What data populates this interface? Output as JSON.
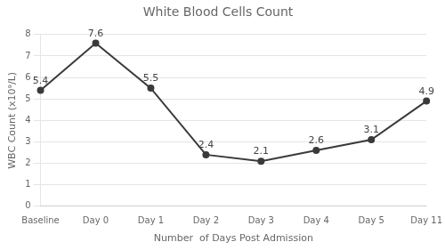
{
  "chart_data": {
    "type": "line",
    "title": "White Blood Cells Count",
    "xlabel": "Number  of Days Post Admission",
    "ylabel": "WBC Count (x10⁹/L)",
    "categories": [
      "Baseline",
      "Day 0",
      "Day 1",
      "Day 2",
      "Day 3",
      "Day 4",
      "Day 5",
      "Day 11"
    ],
    "values": [
      5.4,
      7.6,
      5.5,
      2.4,
      2.1,
      2.6,
      3.1,
      4.9
    ],
    "color": "#3a3a3a",
    "marker": "circle",
    "ylim": [
      0,
      8
    ],
    "yticks": [
      0,
      1,
      2,
      3,
      4,
      5,
      6,
      7,
      8
    ],
    "grid": true,
    "data_labels": true
  }
}
